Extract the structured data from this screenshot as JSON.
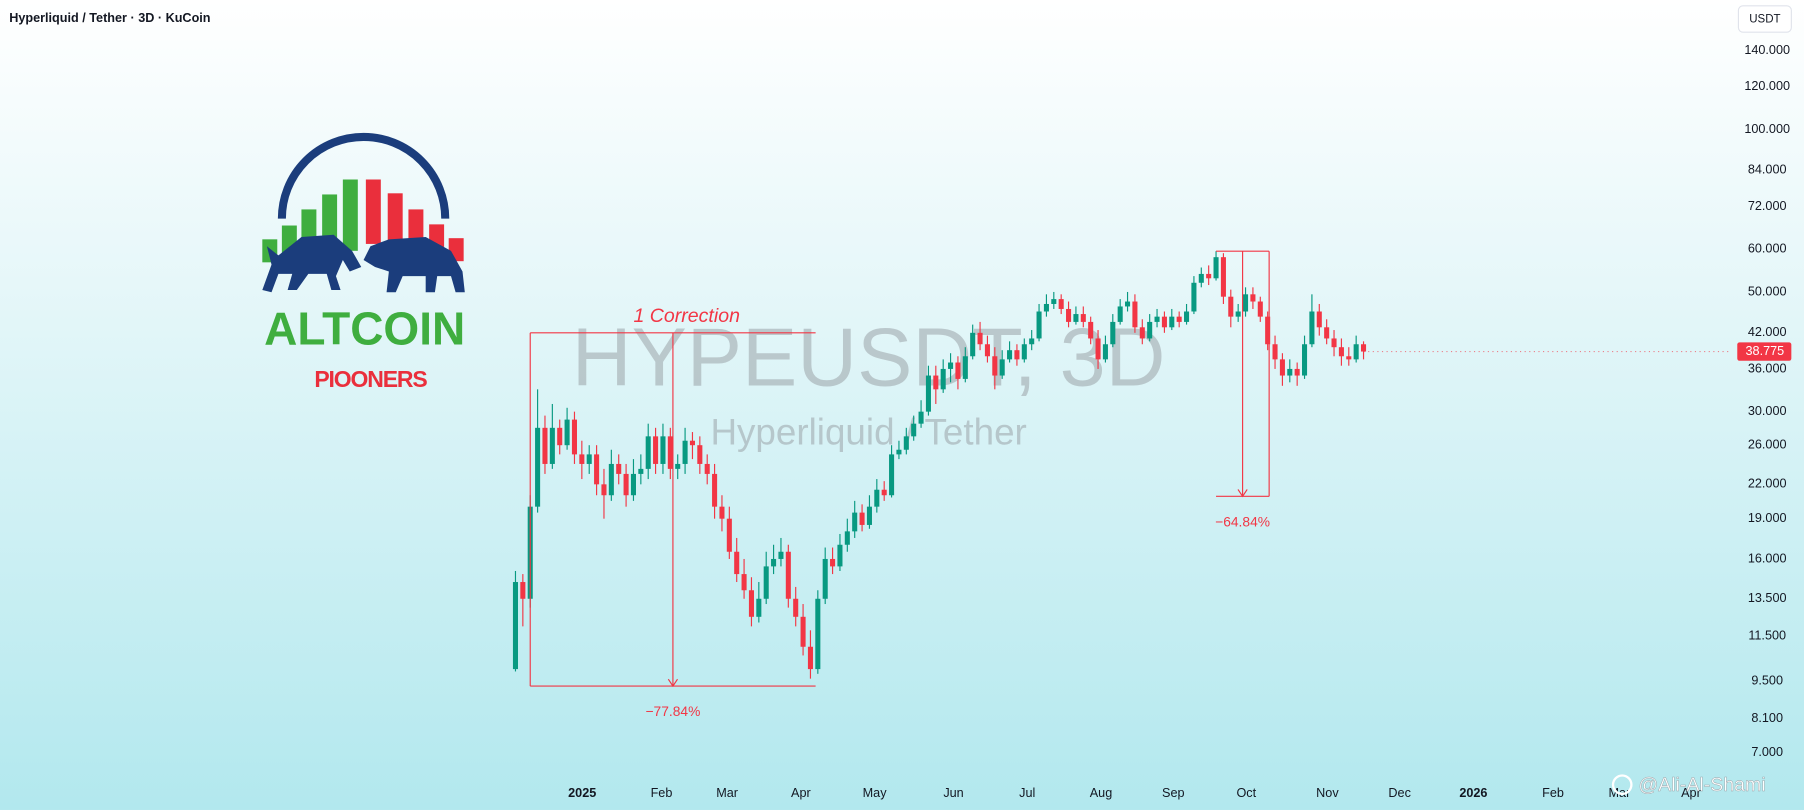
{
  "chart_data": {
    "type": "candlestick",
    "title": "Hyperliquid / Tether · 3D · KuCoin",
    "currency": "USDT",
    "watermark": "HYPEUSDT, 3D",
    "watermark_subtitle": "Hyperliquid / Tether",
    "log_scale": true,
    "grid": false,
    "up_color": "#089981",
    "down_color": "#f23645",
    "xlim": [
      -69.9,
      164.9
    ],
    "xticks": [
      {
        "value": 9.05,
        "label": "2025"
      },
      {
        "value": 19.8,
        "label": "Feb"
      },
      {
        "value": 28.7,
        "label": "Mar"
      },
      {
        "value": 38.7,
        "label": "Apr"
      },
      {
        "value": 48.7,
        "label": "May"
      },
      {
        "value": 59.4,
        "label": "Jun"
      },
      {
        "value": 69.4,
        "label": "Jul"
      },
      {
        "value": 79.4,
        "label": "Aug"
      },
      {
        "value": 89.2,
        "label": "Sep"
      },
      {
        "value": 99.1,
        "label": "Oct"
      },
      {
        "value": 110.1,
        "label": "Nov"
      },
      {
        "value": 119.9,
        "label": "Dec"
      },
      {
        "value": 129.9,
        "label": "2026"
      },
      {
        "value": 140.7,
        "label": "Feb"
      },
      {
        "value": 149.7,
        "label": "Mar"
      },
      {
        "value": 159.4,
        "label": "Apr"
      }
    ],
    "ylim": [
      6.32,
      173.8
    ],
    "yticks": [
      {
        "value": 140,
        "label": "140.000"
      },
      {
        "value": 120,
        "label": "120.000"
      },
      {
        "value": 100,
        "label": "100.000"
      },
      {
        "value": 84,
        "label": "84.000"
      },
      {
        "value": 72,
        "label": "72.000"
      },
      {
        "value": 60,
        "label": "60.000"
      },
      {
        "value": 50,
        "label": "50.000"
      },
      {
        "value": 42,
        "label": "42.000"
      },
      {
        "value": 36,
        "label": "36.000"
      },
      {
        "value": 30,
        "label": "30.000"
      },
      {
        "value": 26,
        "label": "26.000"
      },
      {
        "value": 22,
        "label": "22.000"
      },
      {
        "value": 19,
        "label": "19.000"
      },
      {
        "value": 16,
        "label": "16.000"
      },
      {
        "value": 13.5,
        "label": "13.500"
      },
      {
        "value": 11.5,
        "label": "11.500"
      },
      {
        "value": 9.5,
        "label": "9.500"
      },
      {
        "value": 8.1,
        "label": "8.100"
      },
      {
        "value": 7,
        "label": "7.000"
      }
    ],
    "open": [
      10,
      14.5,
      13.5,
      20,
      28,
      24,
      28,
      26,
      29,
      25,
      24,
      25,
      22,
      21,
      24,
      23,
      21,
      23,
      23.5,
      27,
      24,
      27,
      23.5,
      24,
      26.5,
      26,
      24,
      23,
      20,
      19,
      16.5,
      15,
      14,
      12.5,
      13.5,
      15.5,
      16,
      16.5,
      13.5,
      12.5,
      11,
      10,
      13.5,
      16,
      15.5,
      17,
      18,
      19.5,
      18.5,
      20,
      21.5,
      21,
      25,
      25.5,
      27,
      28.5,
      30,
      35,
      33,
      36,
      37,
      34.5,
      38,
      42,
      40,
      38,
      35,
      37.5,
      39,
      37.5,
      40,
      41,
      46,
      47.5,
      48.5,
      46.5,
      44,
      45.5,
      44,
      41,
      37.5,
      40,
      44,
      47,
      48,
      43,
      41,
      44,
      45,
      43,
      45,
      44,
      46,
      52,
      54,
      53,
      58,
      49,
      45,
      46,
      49.5,
      48,
      45,
      40,
      37.5,
      35,
      36,
      35,
      40,
      46,
      43,
      41,
      39.5,
      38,
      37.5,
      40
    ],
    "high": [
      15.2,
      15,
      21,
      33,
      29.5,
      31,
      29,
      30.5,
      30,
      26.5,
      26,
      26,
      23.5,
      25.5,
      25,
      24,
      24.5,
      25,
      28.5,
      28,
      28.5,
      28,
      25,
      28,
      27.5,
      27,
      25,
      24,
      21,
      20,
      17.5,
      16,
      14.8,
      14.5,
      16.5,
      17,
      17.5,
      17,
      14.2,
      13.2,
      11.8,
      14,
      16.8,
      16.8,
      17.8,
      19,
      20.5,
      20.2,
      21,
      22.5,
      22.3,
      26,
      26.5,
      28,
      29.5,
      31.5,
      36.5,
      36.5,
      37.5,
      38.5,
      38,
      39.5,
      43.5,
      44,
      41.5,
      39.5,
      39,
      40.5,
      40,
      41,
      42.5,
      47.5,
      49.5,
      50,
      49.5,
      48,
      47,
      47,
      45,
      42.5,
      41.5,
      45.5,
      48.5,
      50,
      49.5,
      44.5,
      45.5,
      46.5,
      46,
      46.5,
      46,
      47.5,
      53.5,
      55.5,
      56,
      59.5,
      59,
      50.5,
      47.5,
      51,
      51,
      49,
      46,
      41.5,
      38.5,
      37.5,
      37,
      41.5,
      49.5,
      47.5,
      44.5,
      42.5,
      41,
      39.5,
      41.5,
      40.5
    ],
    "low": [
      9.9,
      12,
      13,
      19.5,
      23,
      23.5,
      25,
      25.5,
      24,
      22.5,
      23,
      21,
      19,
      20.5,
      22,
      20,
      20.5,
      22,
      22.5,
      23,
      23,
      22.5,
      22.5,
      23,
      24.5,
      23,
      22,
      19,
      18,
      16,
      14.5,
      13.5,
      12,
      12.2,
      13.2,
      15,
      15.5,
      13,
      12,
      10.6,
      9.6,
      9.8,
      13.2,
      15,
      15.2,
      16.5,
      17.5,
      18,
      18.2,
      19.5,
      20.5,
      20.8,
      24.5,
      25,
      26.5,
      28,
      29.5,
      31,
      32.5,
      34,
      33,
      34,
      37.5,
      39,
      37,
      33,
      34.5,
      37,
      36.5,
      37,
      39,
      40.5,
      45,
      46.5,
      45.5,
      43,
      43.5,
      43,
      40,
      36,
      37,
      39.5,
      43.5,
      46,
      42,
      40,
      40.5,
      43,
      42,
      42.5,
      43,
      43.5,
      45.5,
      51,
      51.5,
      52.5,
      47.5,
      43,
      44,
      45,
      46.5,
      44,
      39,
      36,
      33.5,
      34,
      33.5,
      34.5,
      39.5,
      41.5,
      40,
      38,
      36.5,
      36.5,
      37,
      37.5
    ],
    "close": [
      14.5,
      13.5,
      20,
      28,
      24,
      28,
      26,
      29,
      25,
      24,
      25,
      22,
      21,
      24,
      23,
      21,
      23,
      23.5,
      27,
      24,
      27,
      23.5,
      24,
      26.5,
      26,
      24,
      23,
      20,
      19,
      16.5,
      15,
      14,
      12.5,
      13.5,
      15.5,
      16,
      16.5,
      13.5,
      12.5,
      11,
      10,
      13.5,
      16,
      15.5,
      17,
      18,
      19.5,
      18.5,
      20,
      21.5,
      21,
      25,
      25.5,
      27,
      28.5,
      30,
      35,
      33,
      36,
      37,
      34.5,
      38,
      42,
      40,
      38,
      35,
      37.5,
      39,
      37.5,
      40,
      41,
      46,
      47.5,
      48.5,
      46.5,
      44,
      45.5,
      44,
      41,
      37.5,
      40,
      44,
      47,
      48,
      43,
      41,
      44,
      45,
      43,
      45,
      44,
      46,
      52,
      54,
      53,
      58,
      49,
      45,
      46,
      49.5,
      48,
      45,
      40,
      37.5,
      35,
      36,
      35,
      40,
      46,
      43,
      41,
      39.5,
      38,
      37.5,
      40,
      38.775
    ],
    "measures": [
      {
        "title": "1 Correction",
        "from": 42,
        "to": 9.3,
        "x": [
          2,
          40.7
        ],
        "label": "−77.84%"
      },
      {
        "from": 59.5,
        "to": 20.9,
        "x": [
          95,
          102.2
        ],
        "label": "−64.84%"
      }
    ]
  },
  "logo": {
    "name": "ALTCOIN",
    "tagline": "PIOONERS"
  },
  "credit": "@Ali-Al-Shami"
}
